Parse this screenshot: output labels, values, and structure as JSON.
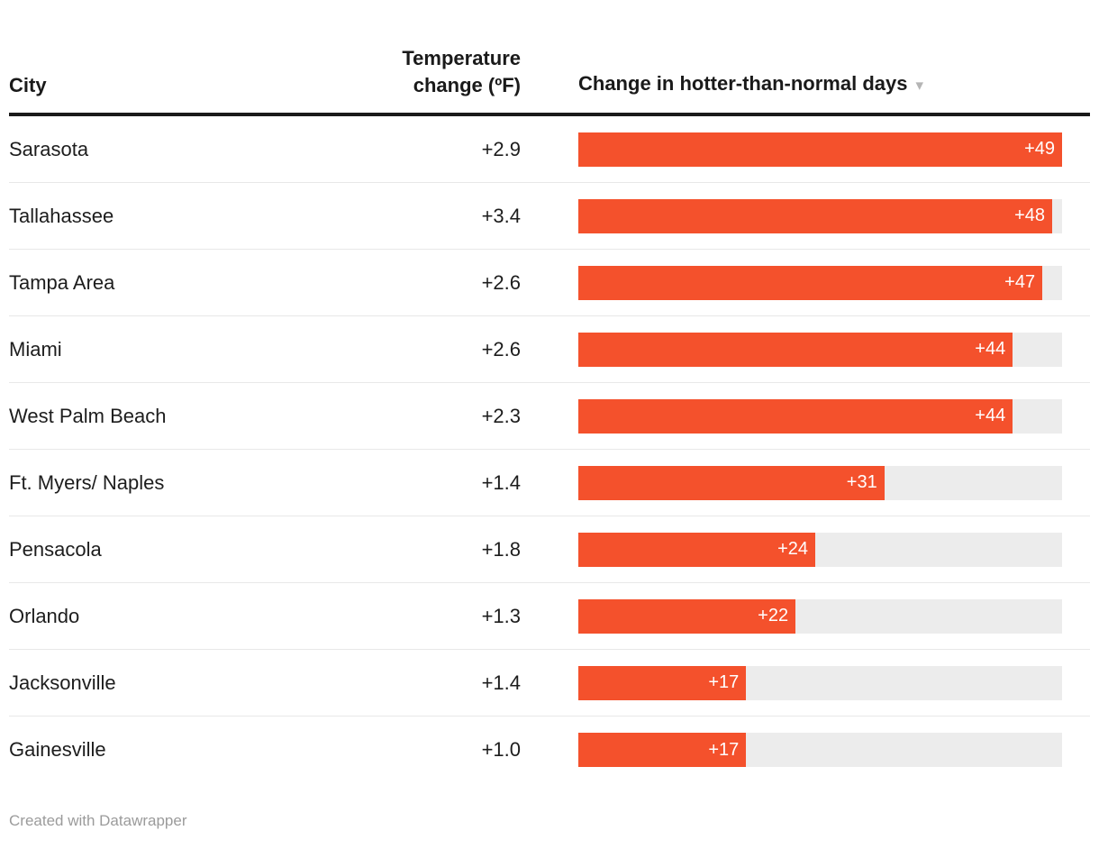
{
  "table": {
    "columns": {
      "city": "City",
      "temperature": "Temperature change (ºF)",
      "days": "Change in hotter-than-normal days",
      "sort_icon": "▾"
    },
    "rows": [
      {
        "city": "Sarasota",
        "temp_label": "+2.9",
        "days": 49,
        "days_label": "+49"
      },
      {
        "city": "Tallahassee",
        "temp_label": "+3.4",
        "days": 48,
        "days_label": "+48"
      },
      {
        "city": "Tampa Area",
        "temp_label": "+2.6",
        "days": 47,
        "days_label": "+47"
      },
      {
        "city": "Miami",
        "temp_label": "+2.6",
        "days": 44,
        "days_label": "+44"
      },
      {
        "city": "West Palm Beach",
        "temp_label": "+2.3",
        "days": 44,
        "days_label": "+44"
      },
      {
        "city": "Ft. Myers/ Naples",
        "temp_label": "+1.4",
        "days": 31,
        "days_label": "+31"
      },
      {
        "city": "Pensacola",
        "temp_label": "+1.8",
        "days": 24,
        "days_label": "+24"
      },
      {
        "city": "Orlando",
        "temp_label": "+1.3",
        "days": 22,
        "days_label": "+22"
      },
      {
        "city": "Jacksonville",
        "temp_label": "+1.4",
        "days": 17,
        "days_label": "+17"
      },
      {
        "city": "Gainesville",
        "temp_label": "+1.0",
        "days": 17,
        "days_label": "+17"
      }
    ]
  },
  "chart_data": {
    "type": "bar",
    "orientation": "horizontal",
    "title": "",
    "categories": [
      "Sarasota",
      "Tallahassee",
      "Tampa Area",
      "Miami",
      "West Palm Beach",
      "Ft. Myers/ Naples",
      "Pensacola",
      "Orlando",
      "Jacksonville",
      "Gainesville"
    ],
    "series": [
      {
        "name": "Temperature change (ºF)",
        "values": [
          2.9,
          3.4,
          2.6,
          2.6,
          2.3,
          1.4,
          1.8,
          1.3,
          1.4,
          1.0
        ]
      },
      {
        "name": "Change in hotter-than-normal days",
        "values": [
          49,
          48,
          47,
          44,
          44,
          31,
          24,
          22,
          17,
          17
        ]
      }
    ],
    "value_axis_range": [
      0,
      49
    ],
    "sort": "descending by hotter-than-normal days",
    "grid": false,
    "legend": false,
    "bar_color": "#f4512c",
    "track_color": "#ececec"
  },
  "colors": {
    "bar": "#f4512c",
    "bar_track": "#ececec",
    "header_rule": "#1a1a1a",
    "row_divider": "#e8e8e8",
    "footer_text": "#9b9b9b"
  },
  "footer": {
    "text": "Created with Datawrapper"
  }
}
